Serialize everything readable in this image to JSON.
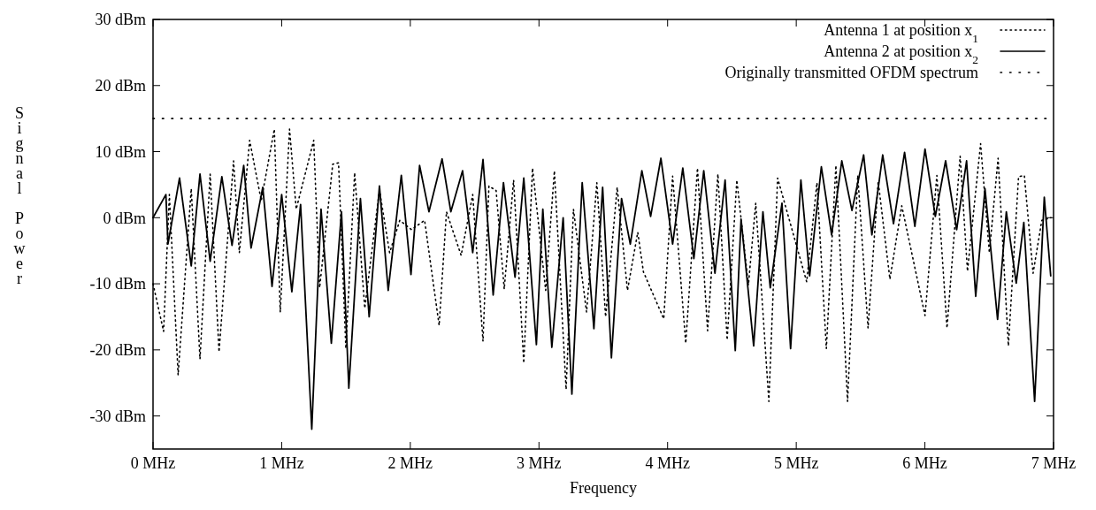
{
  "chart_data": {
    "type": "line",
    "xlabel": "Frequency",
    "ylabel": "Signal Power",
    "xlim": [
      0,
      7
    ],
    "ylim": [
      -35,
      30
    ],
    "xticks": [
      {
        "value": 0,
        "label": "0 MHz"
      },
      {
        "value": 1,
        "label": "1 MHz"
      },
      {
        "value": 2,
        "label": "2 MHz"
      },
      {
        "value": 3,
        "label": "3 MHz"
      },
      {
        "value": 4,
        "label": "4 MHz"
      },
      {
        "value": 5,
        "label": "5 MHz"
      },
      {
        "value": 6,
        "label": "6 MHz"
      },
      {
        "value": 7,
        "label": "7 MHz"
      }
    ],
    "yticks": [
      {
        "value": -30,
        "label": "-30 dBm"
      },
      {
        "value": -20,
        "label": "-20 dBm"
      },
      {
        "value": -10,
        "label": "-10 dBm"
      },
      {
        "value": 0,
        "label": "0 dBm"
      },
      {
        "value": 10,
        "label": "10 dBm"
      },
      {
        "value": 20,
        "label": "20 dBm"
      },
      {
        "value": 30,
        "label": "30 dBm"
      }
    ],
    "grid": false,
    "legend": "top right",
    "series": [
      {
        "name": "Antenna 1 at position x$_{1}$",
        "color": "#000000",
        "line_style": "dotted",
        "x": [
          0,
          0.082,
          0.127,
          0.195,
          0.297,
          0.365,
          0.444,
          0.513,
          0.626,
          0.671,
          0.751,
          0.841,
          0.943,
          0.989,
          1.061,
          1.113,
          1.249,
          1.295,
          1.397,
          1.442,
          1.499,
          1.567,
          1.646,
          1.76,
          1.839,
          1.918,
          2.009,
          2.111,
          2.224,
          2.281,
          2.395,
          2.485,
          2.565,
          2.611,
          2.667,
          2.73,
          2.803,
          2.882,
          2.95,
          3.052,
          3.12,
          3.211,
          3.268,
          3.37,
          3.45,
          3.518,
          3.608,
          3.688,
          3.768,
          3.812,
          3.97,
          4.039,
          4.141,
          4.232,
          4.311,
          4.391,
          4.463,
          4.538,
          4.628,
          4.685,
          4.787,
          4.855,
          5.081,
          5.161,
          5.234,
          5.308,
          5.399,
          5.478,
          5.558,
          5.637,
          5.728,
          5.82,
          6.001,
          6.093,
          6.172,
          6.274,
          6.331,
          6.433,
          6.501,
          6.569,
          6.649,
          6.728,
          6.773,
          6.841,
          6.909,
          6.98
        ],
        "values": [
          -10,
          -17.2,
          3.5,
          -23.8,
          4.4,
          -21.4,
          6.6,
          -20.3,
          8.6,
          -5.3,
          11.7,
          2.6,
          13.4,
          -14.3,
          13.4,
          1.3,
          11.7,
          -10.6,
          8.1,
          8.3,
          -19.8,
          6.8,
          -13.7,
          4.2,
          -5.3,
          -0.4,
          -1.8,
          -0.4,
          -16.3,
          0.9,
          -5.7,
          3.5,
          -18.7,
          4.8,
          4.1,
          -10.8,
          5.7,
          -22,
          7.5,
          -11,
          7.1,
          -26,
          1.3,
          -14.3,
          5.3,
          -15,
          4.6,
          -11,
          -2.2,
          -8.2,
          -15.3,
          6.3,
          -19,
          7.5,
          -17.1,
          6.6,
          -18.5,
          5.7,
          -10.2,
          2.2,
          -27.8,
          6,
          -9.7,
          5.3,
          -19.8,
          7.9,
          -27.8,
          6.4,
          -16.7,
          5.5,
          -9.3,
          1.8,
          -14.8,
          6.4,
          -16.7,
          9.3,
          -8.1,
          11.2,
          -5.3,
          9,
          -19.4,
          6.2,
          6.4,
          -8.4,
          -0.4,
          0
        ]
      },
      {
        "name": "Antenna 2 at position x$_{2}$",
        "color": "#000000",
        "line_style": "solid",
        "x": [
          0,
          0.1,
          0.116,
          0.206,
          0.297,
          0.365,
          0.444,
          0.535,
          0.614,
          0.705,
          0.762,
          0.853,
          0.925,
          1,
          1.079,
          1.147,
          1.234,
          1.306,
          1.386,
          1.465,
          1.522,
          1.612,
          1.68,
          1.76,
          1.828,
          1.93,
          2.005,
          2.072,
          2.145,
          2.247,
          2.315,
          2.406,
          2.485,
          2.565,
          2.644,
          2.724,
          2.814,
          2.882,
          2.98,
          3.03,
          3.1,
          3.188,
          3.256,
          3.336,
          3.427,
          3.495,
          3.563,
          3.642,
          3.71,
          3.8,
          3.868,
          3.948,
          4.039,
          4.118,
          4.204,
          4.281,
          4.368,
          4.447,
          4.526,
          4.571,
          4.669,
          4.741,
          4.798,
          4.889,
          4.956,
          5.036,
          5.104,
          5.195,
          5.275,
          5.354,
          5.433,
          5.524,
          5.588,
          5.672,
          5.756,
          5.842,
          5.922,
          6.001,
          6.081,
          6.161,
          6.247,
          6.324,
          6.395,
          6.467,
          6.565,
          6.633,
          6.71,
          6.769,
          6.853,
          6.928,
          6.978
        ],
        "values": [
          0,
          3.5,
          -4,
          6,
          -7.3,
          6.6,
          -6.6,
          6.2,
          -4.2,
          7.9,
          -4.6,
          4.6,
          -10.4,
          3.5,
          -11.2,
          2,
          -32,
          1.3,
          -19,
          0.9,
          -25.8,
          2.9,
          -15,
          4.8,
          -11,
          6.4,
          -8.6,
          7.9,
          0.9,
          8.9,
          0.9,
          7.1,
          -5.3,
          8.8,
          -11.7,
          5.3,
          -9,
          6,
          -19.2,
          1.3,
          -19.6,
          0,
          -26.7,
          5.3,
          -16.8,
          4.6,
          -21.2,
          2.9,
          -4,
          7.1,
          0.2,
          9,
          -4,
          7.5,
          -6.2,
          7.1,
          -8.4,
          5.7,
          -20.1,
          -0.2,
          -19.4,
          0.9,
          -10.6,
          2.2,
          -19.8,
          5.7,
          -8.8,
          7.7,
          -2.6,
          8.6,
          1.1,
          9.5,
          -2.6,
          9.5,
          -0.9,
          9.9,
          -1.3,
          10.4,
          0.2,
          8.6,
          -1.8,
          8.6,
          -11.9,
          4.4,
          -15.4,
          0.9,
          -9.9,
          -0.7,
          -27.8,
          3.1,
          -8.8
        ]
      },
      {
        "name": "Originally transmitted OFDM spectrum",
        "color": "#000000",
        "line_style": "dotted",
        "x": [
          0,
          7
        ],
        "values": [
          15,
          15
        ]
      }
    ]
  }
}
